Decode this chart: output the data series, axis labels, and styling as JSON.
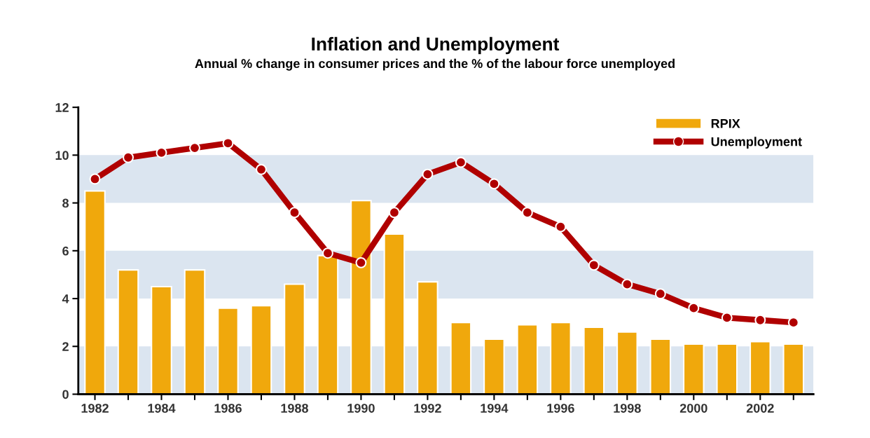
{
  "chart_data": {
    "type": "bar",
    "title": "Inflation and Unemployment",
    "subtitle": "Annual % change in consumer prices and the % of the labour force unemployed",
    "x": [
      1982,
      1983,
      1984,
      1985,
      1986,
      1987,
      1988,
      1989,
      1990,
      1991,
      1992,
      1993,
      1994,
      1995,
      1996,
      1997,
      1998,
      1999,
      2000,
      2001,
      2002,
      2003
    ],
    "series": [
      {
        "name": "RPIX",
        "color": "#f0a80c",
        "values": [
          8.5,
          5.2,
          4.5,
          5.2,
          3.6,
          3.7,
          4.6,
          5.8,
          8.1,
          6.7,
          4.7,
          3.0,
          2.3,
          2.9,
          3.0,
          2.8,
          2.6,
          2.3,
          2.1,
          2.1,
          2.2,
          2.1
        ]
      },
      {
        "name": "Unemployment",
        "type": "line",
        "color": "#b00000",
        "marker": "circle",
        "line_style": "solid",
        "values": [
          9.0,
          9.9,
          10.1,
          10.3,
          10.5,
          9.4,
          7.6,
          5.9,
          5.5,
          7.6,
          9.2,
          9.7,
          8.8,
          7.6,
          7.0,
          5.4,
          4.6,
          4.2,
          3.6,
          3.2,
          3.1,
          3.0
        ]
      }
    ],
    "xlim": [
      1981.5,
      2003.6
    ],
    "xticks": [
      1982,
      {
        "value": 1983,
        "label": null
      },
      1984,
      {
        "value": 1985,
        "label": null
      },
      1986,
      {
        "value": 1987,
        "label": null
      },
      1988,
      {
        "value": 1989,
        "label": null
      },
      1990,
      {
        "value": 1991,
        "label": null
      },
      1992,
      {
        "value": 1993,
        "label": null
      },
      1994,
      {
        "value": 1995,
        "label": null
      },
      1996,
      {
        "value": 1997,
        "label": null
      },
      1998,
      {
        "value": 1999,
        "label": null
      },
      2000,
      {
        "value": 2001,
        "label": null
      },
      2002,
      {
        "value": 2003,
        "label": null
      }
    ],
    "ylim": [
      0,
      12
    ],
    "yticks": [
      0,
      2,
      4,
      6,
      8,
      10,
      12
    ],
    "bands": [
      {
        "axis": "y",
        "from": 0,
        "to": 2,
        "color": "#dbe5f0"
      },
      {
        "axis": "y",
        "from": 4,
        "to": 6,
        "color": "#dbe5f0"
      },
      {
        "axis": "y",
        "from": 8,
        "to": 10,
        "color": "#dbe5f0"
      }
    ],
    "legend": "top right",
    "grid": false
  }
}
